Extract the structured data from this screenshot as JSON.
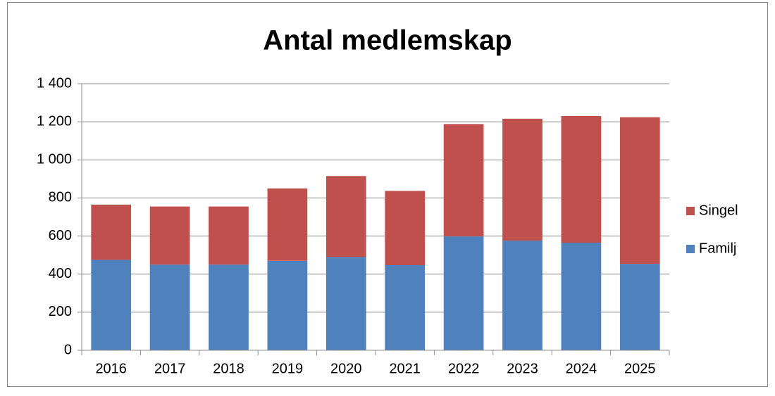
{
  "chart_data": {
    "type": "stacked_bar",
    "title": "Antal medlemskap",
    "categories": [
      "2016",
      "2017",
      "2018",
      "2019",
      "2020",
      "2021",
      "2022",
      "2023",
      "2024",
      "2025"
    ],
    "series": [
      {
        "name": "Familj",
        "color": "#4f81bd",
        "values": [
          475,
          450,
          450,
          470,
          490,
          447,
          598,
          576,
          565,
          454
        ]
      },
      {
        "name": "Singel",
        "color": "#c0504d",
        "values": [
          290,
          305,
          305,
          380,
          425,
          390,
          590,
          640,
          665,
          770
        ]
      }
    ],
    "ylim": [
      0,
      1400
    ],
    "yticks": [
      0,
      200,
      400,
      600,
      800,
      {
        "value": 1000,
        "label": "1 000"
      },
      {
        "value": 1200,
        "label": "1 200"
      },
      {
        "value": 1400,
        "label": "1 400"
      }
    ],
    "grid": true,
    "legend": "right"
  }
}
